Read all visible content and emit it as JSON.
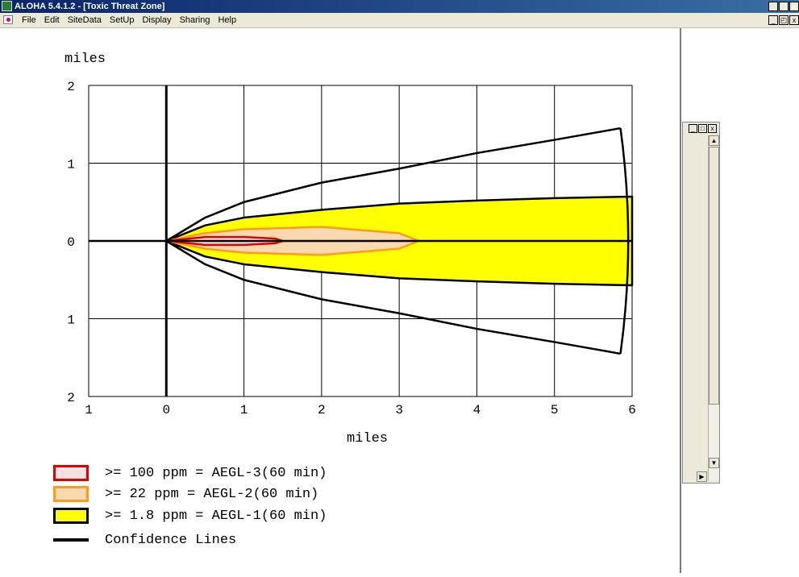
{
  "window": {
    "title": "ALOHA 5.4.1.2 - [Toxic Threat Zone]",
    "controls": [
      "_",
      "□",
      "x"
    ]
  },
  "menu": {
    "items": [
      "File",
      "Edit",
      "SiteData",
      "SetUp",
      "Display",
      "Sharing",
      "Help"
    ],
    "mdi_controls": [
      "_",
      "◰",
      "x"
    ]
  },
  "plot": {
    "y_unit": "miles",
    "x_unit": "miles",
    "x_ticks": [
      "1",
      "0",
      "1",
      "2",
      "3",
      "4",
      "5",
      "6"
    ],
    "y_ticks": [
      "2",
      "1",
      "0",
      "1",
      "2"
    ],
    "colors": {
      "aegl3": "#e00000",
      "aegl2": "#ff9a1a",
      "aegl1_fill": "#ffff00",
      "lines": "#000000",
      "grid": "#000000"
    }
  },
  "chart_data": {
    "type": "area",
    "xlim": [
      -1,
      6
    ],
    "ylim": [
      -2,
      2
    ],
    "xlabel": "miles",
    "ylabel": "miles",
    "grid": true,
    "zones": [
      {
        "name": ">= 100 ppm = AEGL-3(60 min)",
        "color": "#e00000",
        "x": [
          0,
          0.5,
          1.0,
          1.4,
          1.5
        ],
        "half_width": [
          0,
          0.05,
          0.05,
          0.03,
          0
        ]
      },
      {
        "name": ">= 22 ppm = AEGL-2(60 min)",
        "color": "#ff9a1a",
        "x": [
          0,
          0.5,
          1.0,
          2.0,
          3.0,
          3.25
        ],
        "half_width": [
          0,
          0.1,
          0.15,
          0.18,
          0.1,
          0
        ]
      },
      {
        "name": ">= 1.8 ppm = AEGL-1(60 min)",
        "color": "#ffff00",
        "x": [
          0,
          0.5,
          1.0,
          2.0,
          3.0,
          4.0,
          5.0,
          6.0
        ],
        "half_width": [
          0,
          0.2,
          0.3,
          0.4,
          0.48,
          0.52,
          0.55,
          0.57
        ]
      }
    ],
    "confidence_lines": {
      "x": [
        0,
        0.5,
        1.0,
        2.0,
        3.0,
        4.0,
        5.0,
        5.85
      ],
      "half_width": [
        0,
        0.3,
        0.5,
        0.75,
        0.93,
        1.13,
        1.3,
        1.45
      ]
    }
  },
  "legend": [
    {
      "label": ">= 100 ppm = AEGL-3(60 min)",
      "border": "#e00000",
      "fill": "#f7e0e0"
    },
    {
      "label": ">= 22 ppm = AEGL-2(60 min)",
      "border": "#ff9a1a",
      "fill": "#fbd9b0"
    },
    {
      "label": ">= 1.8 ppm = AEGL-1(60 min)",
      "border": "#000000",
      "fill": "#ffff00"
    },
    {
      "label": "Confidence Lines"
    }
  ],
  "side_window": {
    "controls": [
      "_",
      "□",
      "x"
    ]
  }
}
